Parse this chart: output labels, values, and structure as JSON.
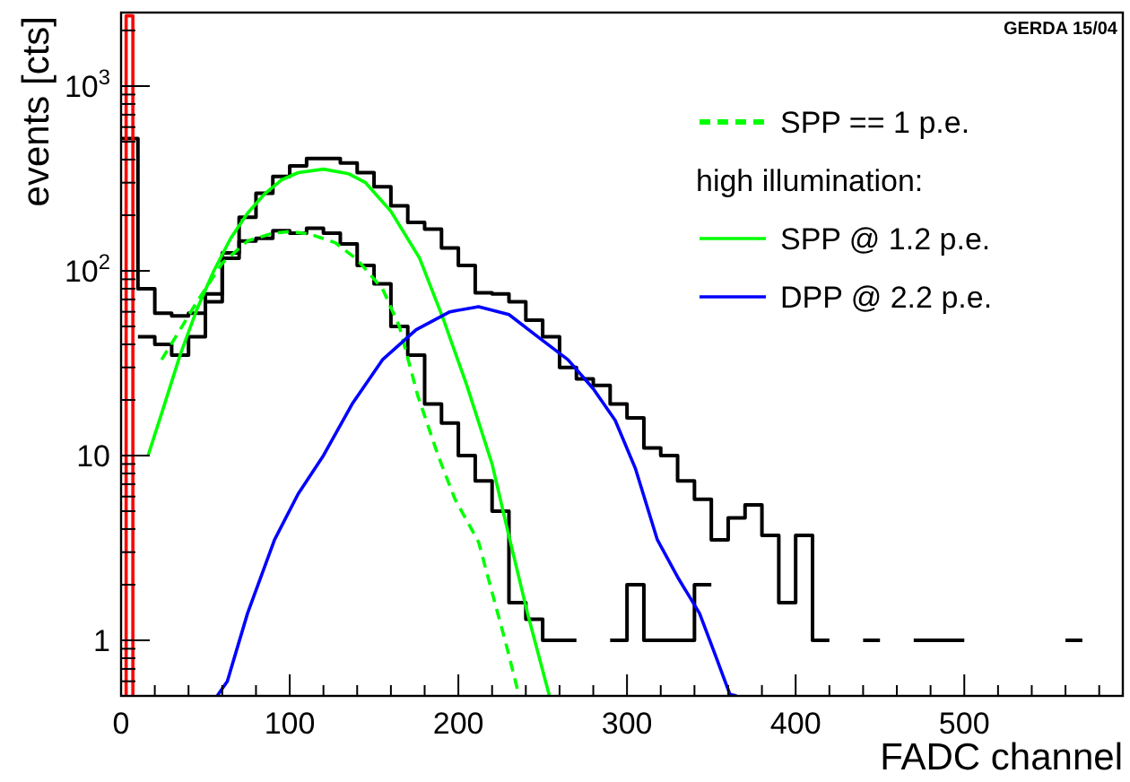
{
  "chart_data": {
    "type": "step",
    "xlabel": "FADC channel",
    "ylabel": "events [cts]",
    "legend_title": "high illumination:",
    "legend": "top right",
    "log": "y",
    "grid": false,
    "annotations": [
      "GERDA 15/04"
    ],
    "xlim": [
      0,
      594
    ],
    "ylim": [
      0.5,
      2500
    ],
    "xticks": [
      0,
      {
        "value": 20,
        "label": null
      },
      {
        "value": 40,
        "label": null
      },
      {
        "value": 60,
        "label": null
      },
      {
        "value": 80,
        "label": null
      },
      100,
      {
        "value": 120,
        "label": null
      },
      {
        "value": 140,
        "label": null
      },
      {
        "value": 160,
        "label": null
      },
      {
        "value": 180,
        "label": null
      },
      200,
      {
        "value": 220,
        "label": null
      },
      {
        "value": 240,
        "label": null
      },
      {
        "value": 260,
        "label": null
      },
      {
        "value": 280,
        "label": null
      },
      300,
      {
        "value": 320,
        "label": null
      },
      {
        "value": 340,
        "label": null
      },
      {
        "value": 360,
        "label": null
      },
      {
        "value": 380,
        "label": null
      },
      400,
      {
        "value": 420,
        "label": null
      },
      {
        "value": 440,
        "label": null
      },
      {
        "value": 460,
        "label": null
      },
      {
        "value": 480,
        "label": null
      },
      500,
      {
        "value": 520,
        "label": null
      },
      {
        "value": 540,
        "label": null
      },
      {
        "value": 560,
        "label": null
      },
      {
        "value": 580,
        "label": null
      }
    ],
    "yticks": [
      {
        "value": 0.5,
        "label": null
      },
      {
        "value": 0.6,
        "label": null
      },
      {
        "value": 0.7,
        "label": null
      },
      {
        "value": 0.8,
        "label": null
      },
      {
        "value": 0.9,
        "label": null
      },
      1,
      {
        "value": 2,
        "label": null
      },
      {
        "value": 3,
        "label": null
      },
      {
        "value": 4,
        "label": null
      },
      {
        "value": 5,
        "label": null
      },
      {
        "value": 6,
        "label": null
      },
      {
        "value": 7,
        "label": null
      },
      {
        "value": 8,
        "label": null
      },
      {
        "value": 9,
        "label": null
      },
      10,
      {
        "value": 20,
        "label": null
      },
      {
        "value": 30,
        "label": null
      },
      {
        "value": 40,
        "label": null
      },
      {
        "value": 50,
        "label": null
      },
      {
        "value": 60,
        "label": null
      },
      {
        "value": 70,
        "label": null
      },
      {
        "value": 80,
        "label": null
      },
      {
        "value": 90,
        "label": null
      },
      {
        "value": 100,
        "label": "10$^{2}$"
      },
      {
        "value": 200,
        "label": null
      },
      {
        "value": 300,
        "label": null
      },
      {
        "value": 400,
        "label": null
      },
      {
        "value": 500,
        "label": null
      },
      {
        "value": 600,
        "label": null
      },
      {
        "value": 700,
        "label": null
      },
      {
        "value": 800,
        "label": null
      },
      {
        "value": 900,
        "label": null
      },
      {
        "value": 1000,
        "label": "10$^{3}$"
      },
      {
        "value": 2000,
        "label": null
      }
    ],
    "series": [
      {
        "color": "#000000",
        "x": [
          0,
          10,
          20,
          30,
          40,
          50,
          60,
          70,
          80,
          90,
          100,
          110,
          120,
          130,
          140,
          150,
          160,
          170,
          180,
          190,
          200,
          210,
          220,
          230,
          240,
          250,
          260,
          270,
          280,
          290,
          300,
          310,
          320,
          330,
          340,
          350,
          360,
          370,
          380,
          390,
          400,
          410,
          420,
          430,
          440,
          450,
          460,
          470,
          480,
          490,
          500,
          510,
          520,
          530,
          540,
          550,
          560,
          570
        ],
        "values": [
          520,
          80,
          59,
          57,
          59,
          75,
          125,
          195,
          263,
          324,
          370,
          405,
          405,
          383,
          340,
          285,
          225,
          183,
          168,
          133,
          107,
          76,
          75,
          68,
          54,
          44,
          30,
          26,
          24,
          19,
          16,
          11,
          10,
          7.3,
          5.8,
          3.5,
          4.6,
          5.4,
          3.7,
          1.6,
          3.7,
          1,
          1,
          null,
          1,
          1,
          null,
          1,
          1,
          1,
          1,
          null,
          null,
          null,
          null,
          null,
          1,
          1
        ]
      },
      {
        "color": "#000000",
        "x": [
          10,
          20,
          30,
          40,
          50,
          60,
          70,
          80,
          90,
          100,
          110,
          120,
          130,
          140,
          150,
          160,
          170,
          180,
          190,
          200,
          210,
          220,
          230,
          240,
          250,
          260,
          270,
          280,
          290,
          300,
          310,
          320,
          330,
          340,
          350
        ],
        "values": [
          44,
          40,
          35,
          44,
          68,
          117,
          145,
          150,
          165,
          160,
          170,
          160,
          140,
          107,
          85,
          50,
          35,
          19,
          15,
          10,
          7.3,
          5,
          1.6,
          1.3,
          1,
          1,
          1,
          null,
          1,
          2,
          1,
          1,
          1,
          2,
          2
        ]
      },
      {
        "type": "line",
        "name": "SPP == 1 p.e.",
        "color": "#00ff00",
        "line_style": "dashed",
        "x": [
          24,
          35,
          45,
          60,
          75,
          90,
          100,
          112,
          127,
          140,
          155,
          165,
          176,
          188,
          198,
          212,
          229,
          236
        ],
        "values": [
          33,
          48,
          68,
          110,
          145,
          160,
          163,
          158,
          142,
          115,
          80,
          50,
          21,
          10,
          5.8,
          3.4,
          0.9,
          0.5
        ]
      },
      {
        "type": "line",
        "name": "SPP @ 1.2 p.e.",
        "color": "#00ff00",
        "line_style": "solid",
        "x": [
          16,
          25,
          35,
          45,
          55,
          65,
          75,
          85,
          95,
          105,
          120,
          135,
          145,
          160,
          177,
          191,
          205,
          220,
          229,
          241,
          254
        ],
        "values": [
          10,
          18,
          35,
          62,
          100,
          150,
          205,
          260,
          310,
          340,
          355,
          335,
          300,
          210,
          117,
          55,
          24,
          9,
          4,
          1.4,
          0.5
        ]
      },
      {
        "type": "line",
        "name": "DPP @ 2.2 p.e.",
        "color": "#0000ff",
        "line_style": "solid",
        "x": [
          57,
          63,
          75,
          91,
          105,
          120,
          137,
          155,
          175,
          195,
          212,
          230,
          247,
          265,
          280,
          293,
          305,
          318,
          330,
          343,
          352,
          361,
          365
        ],
        "values": [
          0.5,
          0.6,
          1.4,
          3.5,
          6.2,
          10,
          19,
          33,
          48,
          60,
          64,
          58,
          44,
          33,
          23,
          15.5,
          8.5,
          3.5,
          2.2,
          1.4,
          0.85,
          0.51,
          0.5
        ]
      },
      {
        "type": "line",
        "color": "#ff0000",
        "line_style": "solid",
        "x": [
          3,
          3,
          7,
          7
        ],
        "values": [
          0.5,
          2400,
          2400,
          0.5
        ]
      }
    ]
  }
}
